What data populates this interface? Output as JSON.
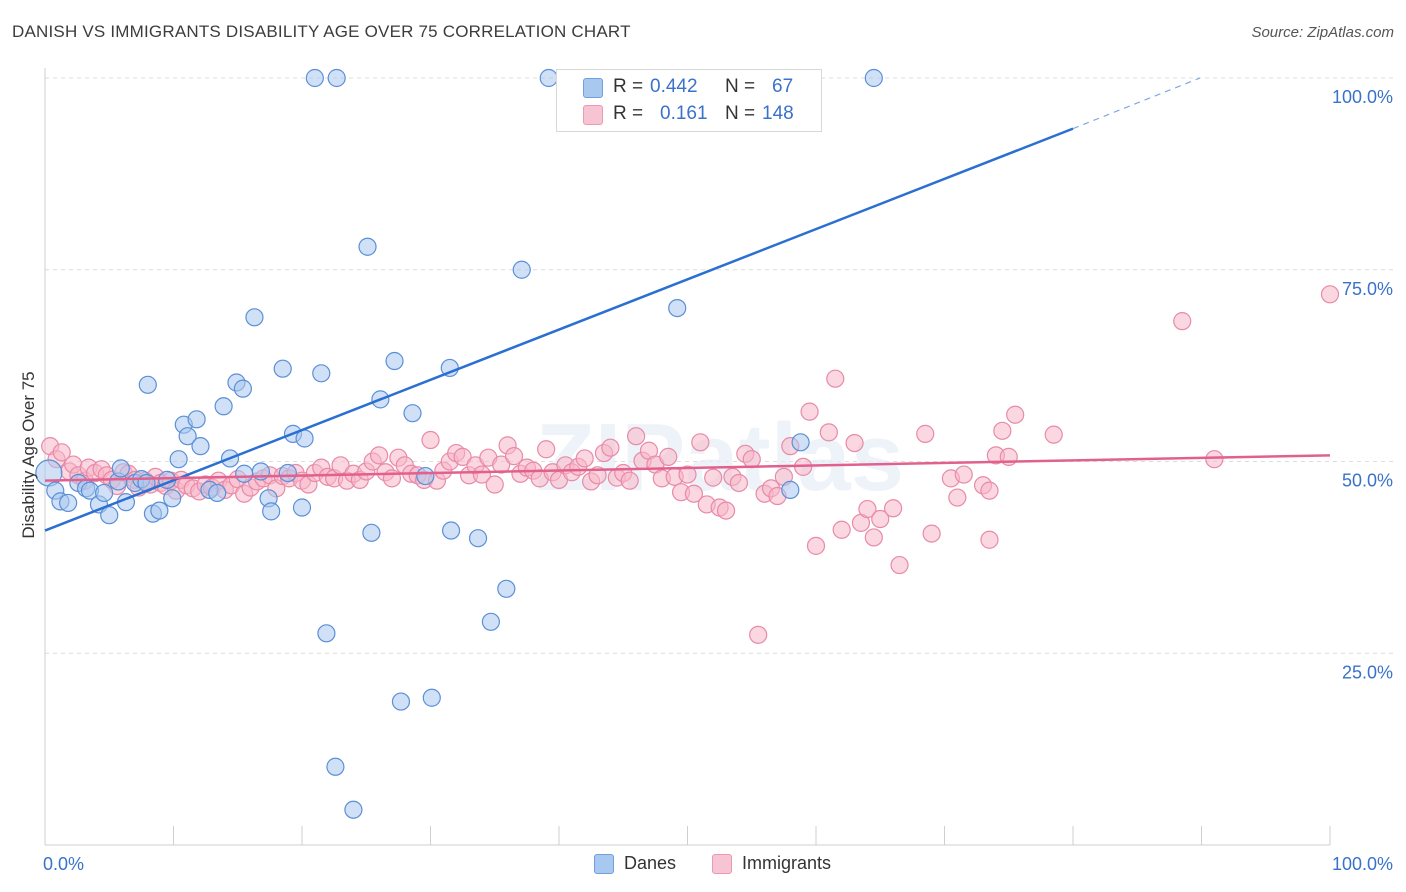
{
  "header": {
    "title": "DANISH VS IMMIGRANTS DISABILITY AGE OVER 75 CORRELATION CHART",
    "source": "Source: ZipAtlas.com"
  },
  "watermark": "ZIPatlas",
  "stats": [
    {
      "r_label": "R =",
      "r_value": "0.442",
      "n_label": "N =",
      "n_value": "67",
      "color": "#a9c8f0"
    },
    {
      "r_label": "R =",
      "r_value": "0.161",
      "n_label": "N =",
      "n_value": "148",
      "color": "#f7b6c9"
    }
  ],
  "legend": [
    {
      "label": "Danes",
      "color": "#a9c8f0"
    },
    {
      "label": "Immigrants",
      "color": "#f7b6c9"
    }
  ],
  "chart_data": {
    "type": "scatter",
    "title": "DANISH VS IMMIGRANTS DISABILITY AGE OVER 75 CORRELATION CHART",
    "xlabel": "",
    "ylabel": "Disability Age Over 75",
    "xlim": [
      0,
      100
    ],
    "ylim": [
      0,
      100
    ],
    "x_tick_labels": [
      "0.0%",
      "100.0%"
    ],
    "y_tick_labels": [
      "25.0%",
      "50.0%",
      "75.0%",
      "100.0%"
    ],
    "grid": "horizontal dashed",
    "legend_position": "bottom-center",
    "colors": {
      "danes_fill": "#a9c8f0",
      "danes_stroke": "#5b8fd6",
      "danes_line": "#2a6fd1",
      "immigrants_fill": "#f7b6c9",
      "immigrants_stroke": "#e88aa8",
      "immigrants_line": "#e2608d",
      "tick_label": "#3a72c9",
      "grid": "#dcdcdc"
    },
    "series": [
      {
        "name": "Danes",
        "trend": {
          "x": [
            0,
            80
          ],
          "y": [
            41.0,
            93.4
          ],
          "dashed_to": [
            100,
            100
          ]
        },
        "points": [
          [
            0.3,
            48.5
          ],
          [
            0.8,
            46.2
          ],
          [
            1.2,
            44.8
          ],
          [
            1.8,
            44.6
          ],
          [
            2.6,
            47.2
          ],
          [
            3.2,
            46.5
          ],
          [
            3.5,
            46.2
          ],
          [
            4.2,
            44.4
          ],
          [
            4.6,
            45.9
          ],
          [
            5.0,
            43.0
          ],
          [
            5.7,
            47.4
          ],
          [
            5.9,
            49.1
          ],
          [
            6.3,
            44.7
          ],
          [
            7.0,
            47.2
          ],
          [
            7.5,
            47.7
          ],
          [
            7.9,
            47.2
          ],
          [
            8.0,
            60.0
          ],
          [
            8.4,
            43.2
          ],
          [
            8.9,
            43.6
          ],
          [
            9.5,
            47.6
          ],
          [
            9.9,
            45.2
          ],
          [
            10.4,
            50.3
          ],
          [
            10.8,
            54.8
          ],
          [
            11.1,
            53.3
          ],
          [
            11.8,
            55.5
          ],
          [
            12.1,
            52.0
          ],
          [
            12.8,
            46.3
          ],
          [
            13.4,
            45.9
          ],
          [
            13.9,
            57.2
          ],
          [
            14.4,
            50.4
          ],
          [
            14.9,
            60.3
          ],
          [
            15.4,
            59.5
          ],
          [
            15.5,
            48.4
          ],
          [
            16.3,
            68.8
          ],
          [
            16.8,
            48.7
          ],
          [
            17.4,
            45.2
          ],
          [
            17.6,
            43.5
          ],
          [
            18.5,
            62.1
          ],
          [
            18.9,
            48.5
          ],
          [
            19.3,
            53.6
          ],
          [
            20.0,
            44.0
          ],
          [
            20.2,
            53.0
          ],
          [
            21.0,
            100.0
          ],
          [
            21.5,
            61.5
          ],
          [
            21.9,
            27.6
          ],
          [
            22.6,
            10.2
          ],
          [
            22.7,
            100.0
          ],
          [
            24.0,
            4.6
          ],
          [
            25.1,
            78.0
          ],
          [
            25.4,
            40.7
          ],
          [
            26.1,
            58.1
          ],
          [
            27.2,
            63.1
          ],
          [
            27.7,
            18.7
          ],
          [
            28.6,
            56.3
          ],
          [
            29.6,
            48.1
          ],
          [
            30.1,
            19.2
          ],
          [
            31.5,
            62.2
          ],
          [
            31.6,
            41.0
          ],
          [
            33.7,
            40.0
          ],
          [
            34.7,
            29.1
          ],
          [
            35.9,
            33.4
          ],
          [
            37.1,
            75.0
          ],
          [
            39.2,
            100.0
          ],
          [
            49.2,
            70.0
          ],
          [
            58.0,
            46.3
          ],
          [
            58.8,
            52.5
          ],
          [
            64.5,
            100.0
          ]
        ]
      },
      {
        "name": "Immigrants",
        "trend": {
          "x": [
            0,
            100
          ],
          "y": [
            47.5,
            50.8
          ]
        },
        "points": [
          [
            0.4,
            52.0
          ],
          [
            0.9,
            50.3
          ],
          [
            1.3,
            51.2
          ],
          [
            1.9,
            48.7
          ],
          [
            2.2,
            49.6
          ],
          [
            2.6,
            48.2
          ],
          [
            3.1,
            47.5
          ],
          [
            3.4,
            49.2
          ],
          [
            3.9,
            48.5
          ],
          [
            4.4,
            49.0
          ],
          [
            4.8,
            48.2
          ],
          [
            5.2,
            47.6
          ],
          [
            5.6,
            46.8
          ],
          [
            6.1,
            48.6
          ],
          [
            6.5,
            48.4
          ],
          [
            7.0,
            47.6
          ],
          [
            7.3,
            46.6
          ],
          [
            7.8,
            47.5
          ],
          [
            8.2,
            47.0
          ],
          [
            8.6,
            48.0
          ],
          [
            9.0,
            47.2
          ],
          [
            9.4,
            46.8
          ],
          [
            9.8,
            47.5
          ],
          [
            10.2,
            46.2
          ],
          [
            10.6,
            47.6
          ],
          [
            11.0,
            46.9
          ],
          [
            11.5,
            46.5
          ],
          [
            12.0,
            46.1
          ],
          [
            12.5,
            47.0
          ],
          [
            13.0,
            46.6
          ],
          [
            13.5,
            47.5
          ],
          [
            14.0,
            46.3
          ],
          [
            14.5,
            46.9
          ],
          [
            15.0,
            47.7
          ],
          [
            15.5,
            45.8
          ],
          [
            16.0,
            46.6
          ],
          [
            16.5,
            47.4
          ],
          [
            17.0,
            47.8
          ],
          [
            17.5,
            48.2
          ],
          [
            18.0,
            46.5
          ],
          [
            18.5,
            48.1
          ],
          [
            19.0,
            47.8
          ],
          [
            19.5,
            48.5
          ],
          [
            20.0,
            47.5
          ],
          [
            20.5,
            47.0
          ],
          [
            21.0,
            48.5
          ],
          [
            21.5,
            49.2
          ],
          [
            22.0,
            48.0
          ],
          [
            22.5,
            47.8
          ],
          [
            23.0,
            49.5
          ],
          [
            23.5,
            47.5
          ],
          [
            24.0,
            48.4
          ],
          [
            24.5,
            47.6
          ],
          [
            25.0,
            48.7
          ],
          [
            25.5,
            50.0
          ],
          [
            26.0,
            50.8
          ],
          [
            26.5,
            48.6
          ],
          [
            27.0,
            47.8
          ],
          [
            27.5,
            50.5
          ],
          [
            28.0,
            49.5
          ],
          [
            28.5,
            48.4
          ],
          [
            29.0,
            48.2
          ],
          [
            29.5,
            47.6
          ],
          [
            30.0,
            52.8
          ],
          [
            30.5,
            47.5
          ],
          [
            31.0,
            48.8
          ],
          [
            31.5,
            50.0
          ],
          [
            32.0,
            51.1
          ],
          [
            32.5,
            50.6
          ],
          [
            33.0,
            48.2
          ],
          [
            33.5,
            49.5
          ],
          [
            34.0,
            48.3
          ],
          [
            34.5,
            50.5
          ],
          [
            35.0,
            47.0
          ],
          [
            35.5,
            49.6
          ],
          [
            36.0,
            52.1
          ],
          [
            36.5,
            50.7
          ],
          [
            37.0,
            48.4
          ],
          [
            37.5,
            49.2
          ],
          [
            38.0,
            48.8
          ],
          [
            38.5,
            47.8
          ],
          [
            39.0,
            51.6
          ],
          [
            39.5,
            48.6
          ],
          [
            40.0,
            47.6
          ],
          [
            40.5,
            49.5
          ],
          [
            41.0,
            48.6
          ],
          [
            41.5,
            49.3
          ],
          [
            42.0,
            50.4
          ],
          [
            42.5,
            47.4
          ],
          [
            43.0,
            48.2
          ],
          [
            43.5,
            51.1
          ],
          [
            44.0,
            51.8
          ],
          [
            44.5,
            47.9
          ],
          [
            45.0,
            48.5
          ],
          [
            45.5,
            47.5
          ],
          [
            46.0,
            53.3
          ],
          [
            46.5,
            50.1
          ],
          [
            47.0,
            51.4
          ],
          [
            47.5,
            49.6
          ],
          [
            48.0,
            47.8
          ],
          [
            48.5,
            50.6
          ],
          [
            49.0,
            48.0
          ],
          [
            49.5,
            46.0
          ],
          [
            50.0,
            48.3
          ],
          [
            50.5,
            45.8
          ],
          [
            51.0,
            52.5
          ],
          [
            51.5,
            44.4
          ],
          [
            52.0,
            47.9
          ],
          [
            52.5,
            44.0
          ],
          [
            53.0,
            43.6
          ],
          [
            53.5,
            48.0
          ],
          [
            54.0,
            47.2
          ],
          [
            54.5,
            51.0
          ],
          [
            55.0,
            50.3
          ],
          [
            55.5,
            27.4
          ],
          [
            56.0,
            45.8
          ],
          [
            56.5,
            46.5
          ],
          [
            57.0,
            45.5
          ],
          [
            57.5,
            48.0
          ],
          [
            58.0,
            52.0
          ],
          [
            59.0,
            49.3
          ],
          [
            59.5,
            56.5
          ],
          [
            60.0,
            39.0
          ],
          [
            61.0,
            53.8
          ],
          [
            61.5,
            60.8
          ],
          [
            62.0,
            41.1
          ],
          [
            63.0,
            52.4
          ],
          [
            63.5,
            42.0
          ],
          [
            64.0,
            43.8
          ],
          [
            64.5,
            40.1
          ],
          [
            65.0,
            42.5
          ],
          [
            66.0,
            43.9
          ],
          [
            66.5,
            36.5
          ],
          [
            68.5,
            53.6
          ],
          [
            69.0,
            40.6
          ],
          [
            70.5,
            47.8
          ],
          [
            71.0,
            45.3
          ],
          [
            71.5,
            48.3
          ],
          [
            73.0,
            46.9
          ],
          [
            73.5,
            39.8
          ],
          [
            73.5,
            46.2
          ],
          [
            74.0,
            50.8
          ],
          [
            74.5,
            54.0
          ],
          [
            75.0,
            50.6
          ],
          [
            75.5,
            56.1
          ],
          [
            78.5,
            53.5
          ],
          [
            88.5,
            68.3
          ],
          [
            91.0,
            50.3
          ],
          [
            100.0,
            71.8
          ]
        ]
      }
    ]
  }
}
